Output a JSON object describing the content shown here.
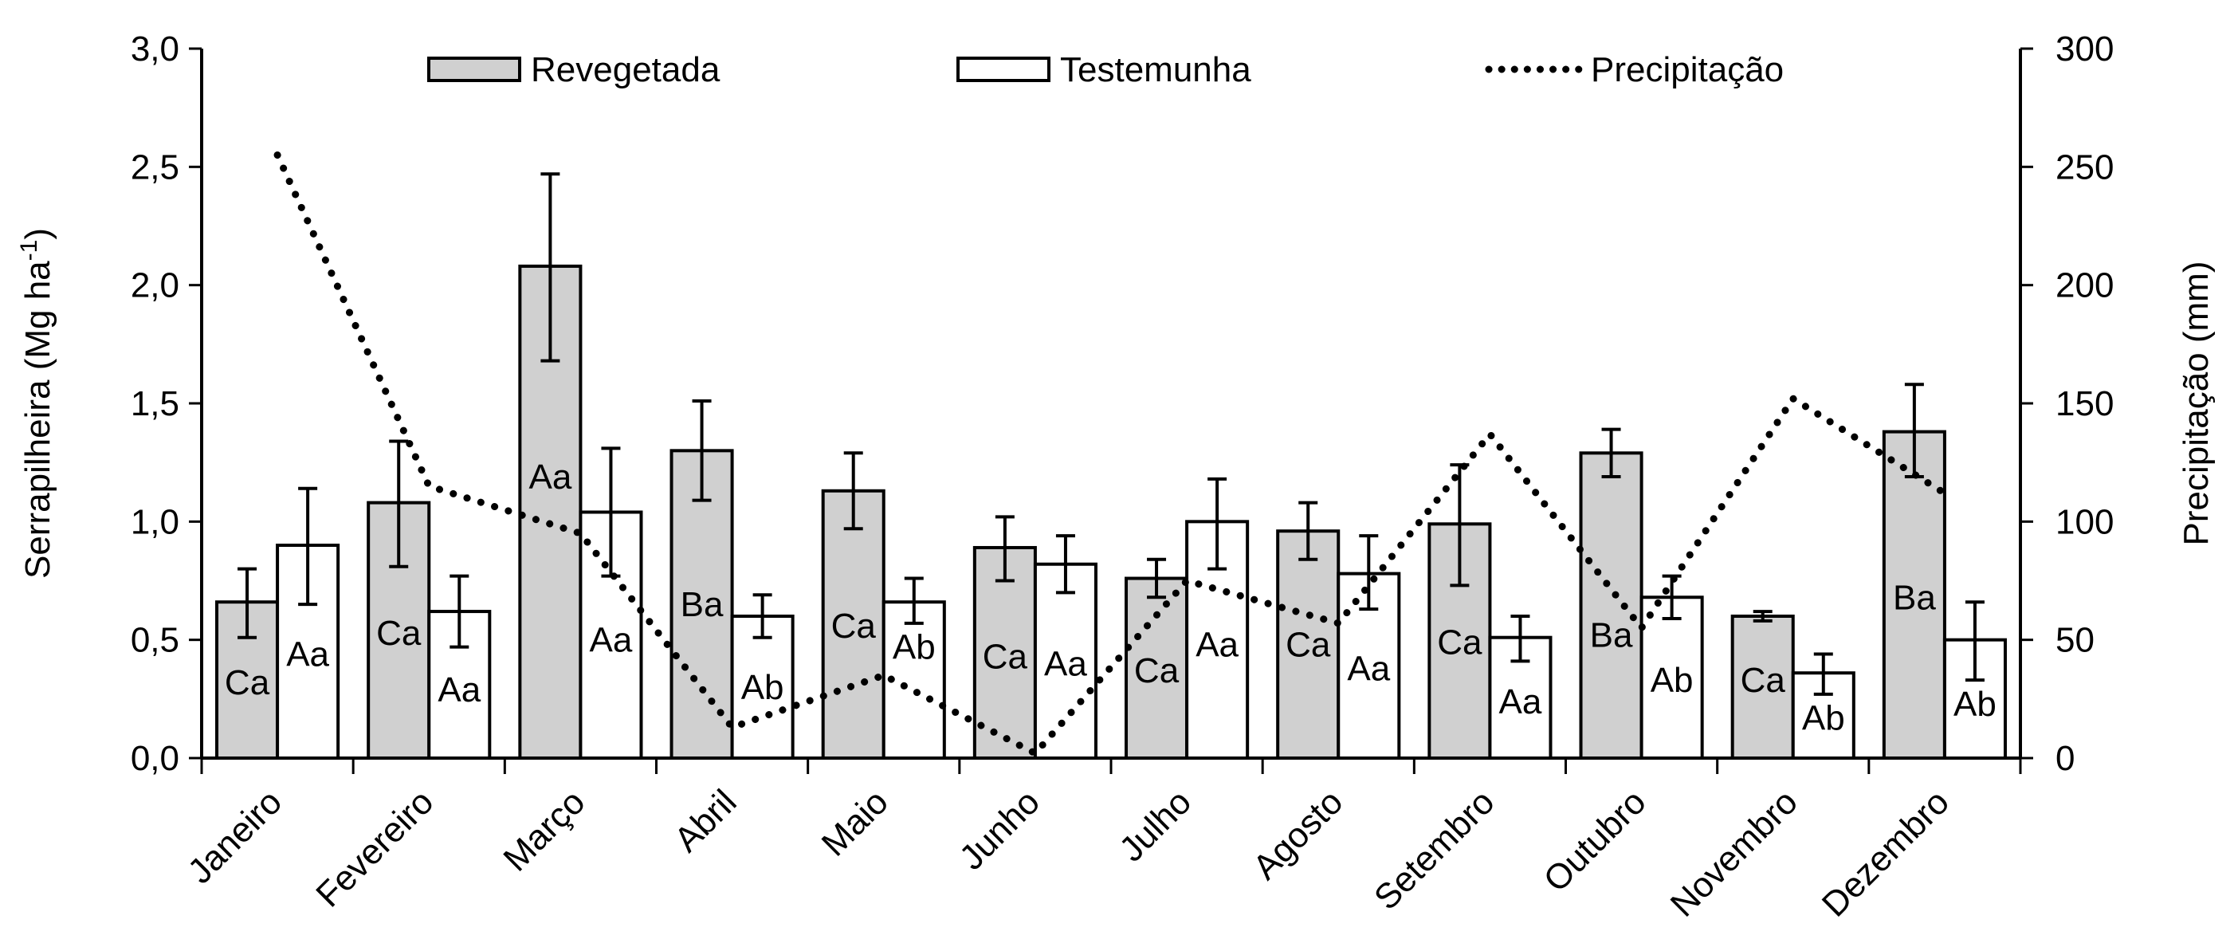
{
  "chart_data": {
    "type": "bar",
    "title": "",
    "categories": [
      "Janeiro",
      "Fevereiro",
      "Março",
      "Abril",
      "Maio",
      "Junho",
      "Julho",
      "Agosto",
      "Setembro",
      "Outubro",
      "Novembro",
      "Dezembro"
    ],
    "ylabel": "Serrapilheira (Mg ha-1)",
    "ylabel_main": "Serrapilheira (Mg ha",
    "ylabel_sup": "-1",
    "ylabel_close": ")",
    "y2label": "Precipitação (mm)",
    "ylim": [
      0,
      3.0
    ],
    "y2lim": [
      0,
      300
    ],
    "yticks": [
      "0,0",
      "0,5",
      "1,0",
      "1,5",
      "2,0",
      "2,5",
      "3,0"
    ],
    "ytick_values": [
      0,
      0.5,
      1.0,
      1.5,
      2.0,
      2.5,
      3.0
    ],
    "y2ticks": [
      "0",
      "50",
      "100",
      "150",
      "200",
      "250",
      "300"
    ],
    "y2tick_values": [
      0,
      50,
      100,
      150,
      200,
      250,
      300
    ],
    "grid": false,
    "legend_position": "top",
    "series": [
      {
        "name": "Revegetada",
        "kind": "bar",
        "axis": "left",
        "color": "#d0d0d0",
        "values": [
          0.66,
          1.08,
          2.08,
          1.3,
          1.13,
          0.89,
          0.76,
          0.96,
          0.99,
          1.29,
          0.6,
          1.38
        ],
        "err_low": [
          0.51,
          0.81,
          1.68,
          1.09,
          0.97,
          0.75,
          0.68,
          0.84,
          0.73,
          1.19,
          0.58,
          1.19
        ],
        "err_high": [
          0.8,
          1.34,
          2.47,
          1.51,
          1.29,
          1.02,
          0.84,
          1.08,
          1.24,
          1.39,
          0.62,
          1.58
        ],
        "labels": [
          "Ca",
          "Ca",
          "Aa",
          "Ba",
          "Ca",
          "Ca",
          "Ca",
          "Ca",
          "Ca",
          "Ba",
          "Ca",
          "Ba"
        ],
        "label_values": [
          0.32,
          0.53,
          1.19,
          0.65,
          0.56,
          0.43,
          0.37,
          0.48,
          0.49,
          0.52,
          0.33,
          0.68
        ]
      },
      {
        "name": "Testemunha",
        "kind": "bar",
        "axis": "left",
        "color": "#ffffff",
        "values": [
          0.9,
          0.62,
          1.04,
          0.6,
          0.66,
          0.82,
          1.0,
          0.78,
          0.51,
          0.68,
          0.36,
          0.5
        ],
        "err_low": [
          0.65,
          0.47,
          0.77,
          0.51,
          0.57,
          0.7,
          0.8,
          0.63,
          0.41,
          0.59,
          0.27,
          0.33
        ],
        "err_high": [
          1.14,
          0.77,
          1.31,
          0.69,
          0.76,
          0.94,
          1.18,
          0.94,
          0.6,
          0.77,
          0.44,
          0.66
        ],
        "labels": [
          "Aa",
          "Aa",
          "Aa",
          "Ab",
          "Ab",
          "Aa",
          "Aa",
          "Aa",
          "Aa",
          "Ab",
          "Ab",
          "Ab"
        ],
        "label_values": [
          0.44,
          0.29,
          0.5,
          0.3,
          0.47,
          0.4,
          0.48,
          0.38,
          0.24,
          0.33,
          0.17,
          0.23
        ]
      },
      {
        "name": "Precipitação",
        "kind": "line",
        "axis": "right",
        "style": "dotted",
        "color": "#000000",
        "values": [
          255,
          115,
          95,
          13,
          35,
          2,
          75,
          57,
          137,
          55,
          152,
          112
        ]
      }
    ]
  }
}
